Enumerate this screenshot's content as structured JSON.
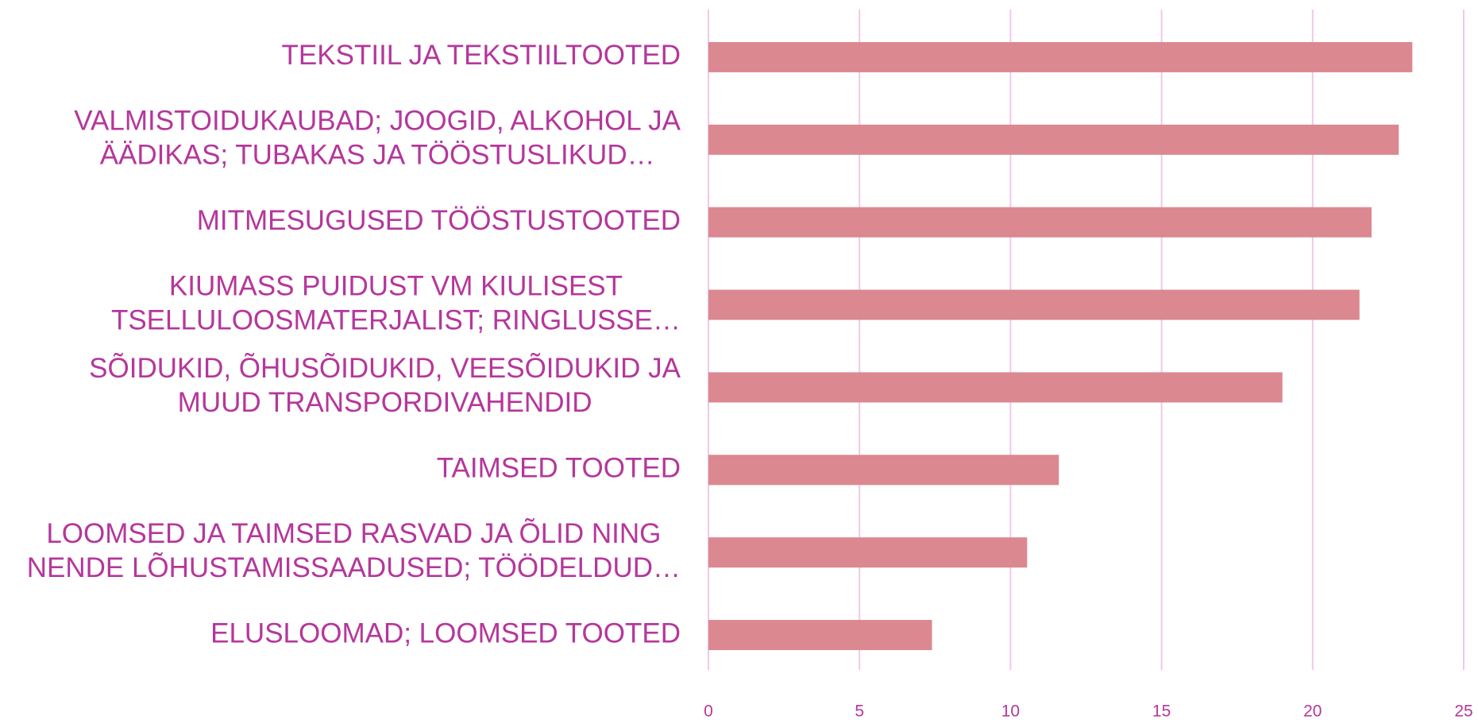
{
  "chart_data": {
    "type": "barh",
    "categories": [
      [
        "TEKSTIIL JA TEKSTIILTOOTED"
      ],
      [
        "VALMISTOIDUKAUBAD; JOOGID, ALKOHOL JA",
        "ÄÄDIKAS; TUBAKAS JA TÖÖSTUSLIKUD…"
      ],
      [
        "MITMESUGUSED TÖÖSTUSTOOTED"
      ],
      [
        "KIUMASS PUIDUST VM KIULISEST",
        "TSELLULOOSMATERJALIST; RINGLUSSE…"
      ],
      [
        "SÕIDUKID, ÕHUSÕIDUKID, VEESÕIDUKID JA",
        "MUUD TRANSPORDIVAHENDID"
      ],
      [
        "TAIMSED TOOTED"
      ],
      [
        "LOOMSED JA TAIMSED RASVAD JA ÕLID NING",
        "NENDE LÕHUSTAMISSAADUSED; TÖÖDELDUD…"
      ],
      [
        "ELUSLOOMAD; LOOMSED TOOTED"
      ]
    ],
    "values": [
      23.3,
      22.85,
      21.95,
      21.55,
      19.0,
      11.6,
      10.55,
      7.4
    ],
    "color": "#db8891",
    "xlim": [
      0,
      25
    ],
    "xticks": [
      0,
      5,
      10,
      15,
      20,
      25
    ],
    "grid": true,
    "grid_color": "#f0c8ea"
  }
}
